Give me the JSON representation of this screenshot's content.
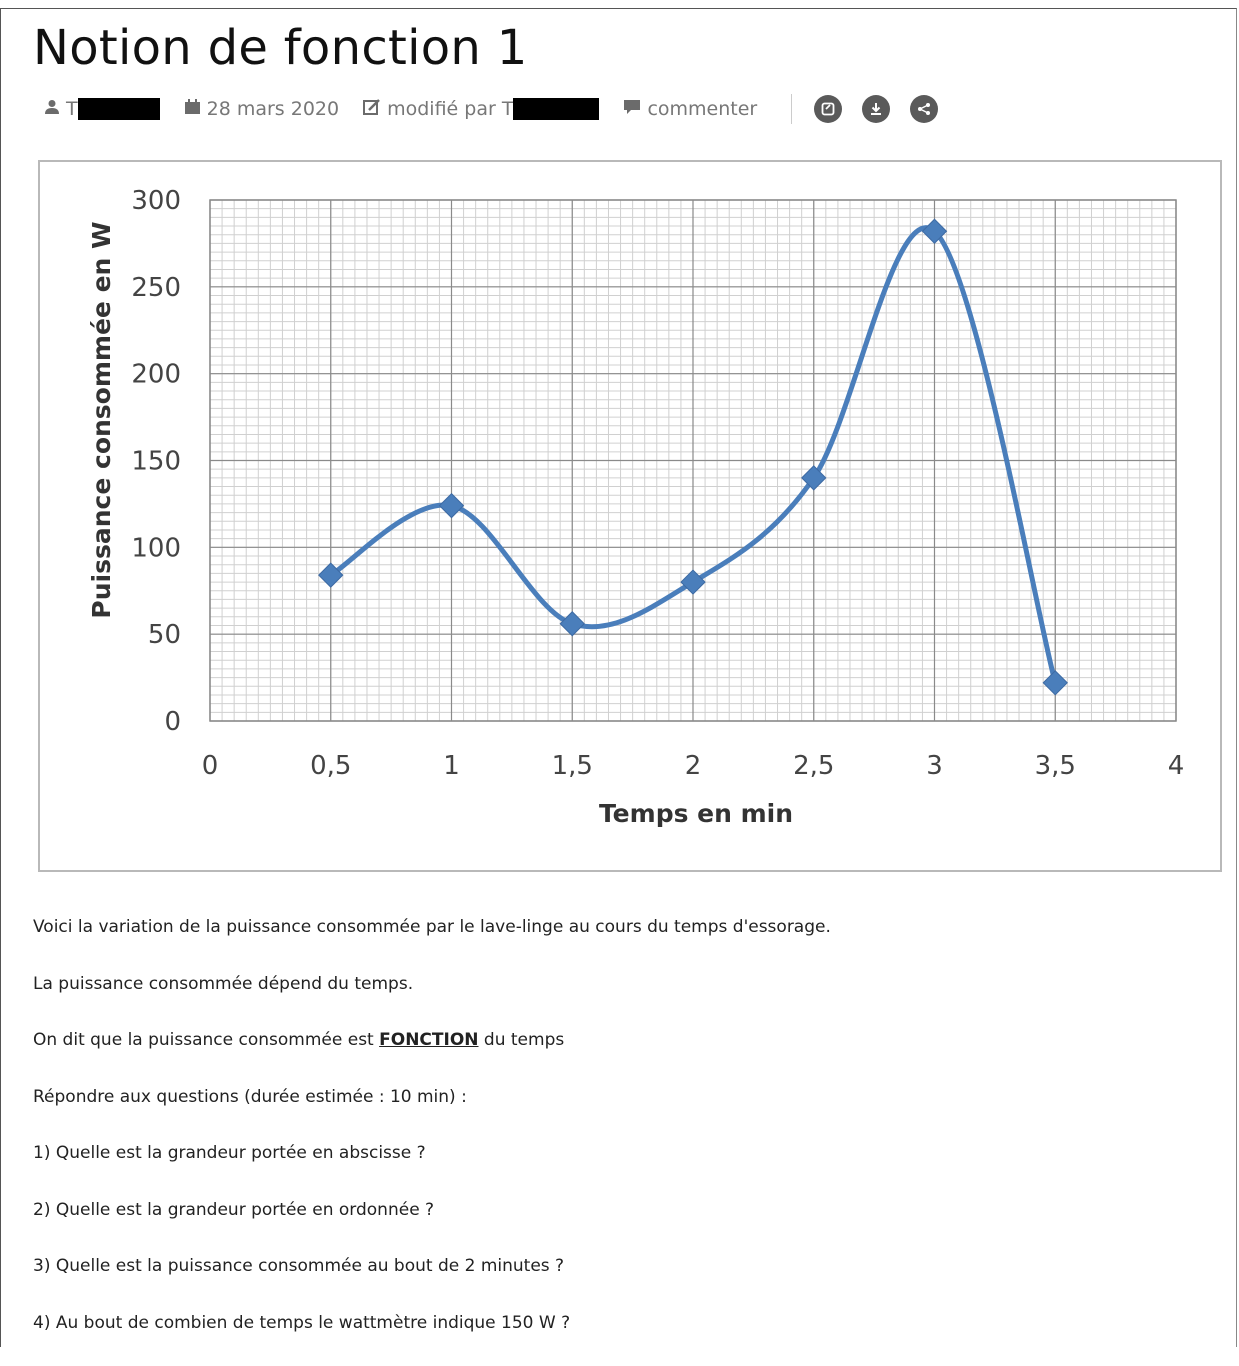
{
  "page": {
    "title": "Notion de fonction 1",
    "meta": {
      "author": "T",
      "date": "28 mars 2020",
      "modified_by": "modifié par T",
      "comment": "commenter"
    },
    "icons": [
      "user-icon",
      "calendar-icon",
      "edit-icon",
      "comment-icon",
      "open-icon",
      "download-icon",
      "share-icon"
    ]
  },
  "chart_data": {
    "type": "line",
    "title": "",
    "xlabel": "Temps en min",
    "ylabel": "Puissance consommée en W",
    "xlim": [
      0,
      4
    ],
    "ylim": [
      0,
      300
    ],
    "x_ticks": [
      "0",
      "0,5",
      "1",
      "1,5",
      "2",
      "2,5",
      "3",
      "3,5",
      "4"
    ],
    "y_ticks": [
      "0",
      "50",
      "100",
      "150",
      "200",
      "250",
      "300"
    ],
    "grid": true,
    "line_color": "#4a7ebb",
    "series": [
      {
        "x": [
          0.5,
          1,
          1.5,
          2,
          2.5,
          3,
          3.5
        ],
        "values": [
          84,
          124,
          56,
          80,
          140,
          282,
          22
        ]
      }
    ]
  },
  "content": {
    "p1": "Voici la variation de la puissance consommée par le lave-linge au cours du temps d'essorage.",
    "p2": "La puissance consommée dépend du temps.",
    "p3_before": "On dit que la puissance consommée est ",
    "p3_strong": "FONCTION",
    "p3_after": " du temps",
    "p4": "Répondre aux questions (durée estimée : 10 min) :",
    "q1": "1) Quelle est la grandeur portée en abscisse ?",
    "q2": "2) Quelle est la grandeur portée en ordonnée ?",
    "q3": "3) Quelle est la puissance consommée au bout de 2 minutes ?",
    "q4": "4) Au bout de combien de temps le wattmètre indique 150 W ?"
  }
}
